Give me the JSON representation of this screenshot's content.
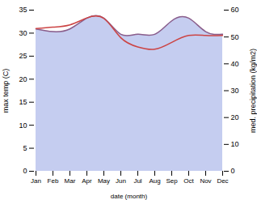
{
  "chart_data": {
    "type": "line",
    "xlabel": "date (month)",
    "ylabel": "max temp (C)",
    "y2label": "med. precipitation (kg/m2)",
    "categories": [
      "Jan",
      "Feb",
      "Mar",
      "Apr",
      "May",
      "Jun",
      "Jul",
      "Aug",
      "Sep",
      "Oct",
      "Nov",
      "Dec"
    ],
    "series": [
      {
        "type": "area",
        "axis": "y2",
        "color": "#c5cdf0",
        "values": [
          53,
          52,
          53,
          57,
          57,
          51,
          51,
          51,
          56,
          57,
          52,
          51
        ]
      },
      {
        "type": "line",
        "axis": "y2",
        "color": "#8b5e8b",
        "values": [
          53,
          52,
          53,
          57,
          57,
          51,
          51,
          51,
          56,
          57,
          52,
          51
        ]
      },
      {
        "type": "line",
        "color": "#cc4444",
        "values": [
          31.0,
          31.3,
          31.8,
          33.3,
          33.2,
          29.0,
          27.0,
          26.5,
          28.0,
          29.5,
          29.5,
          29.5
        ]
      }
    ],
    "ylim": [
      0,
      35
    ],
    "yticks": [
      0,
      5,
      10,
      15,
      20,
      25,
      30,
      35
    ],
    "y2lim": [
      0,
      60
    ],
    "y2ticks": [
      0,
      10,
      20,
      30,
      40,
      50,
      60
    ]
  }
}
